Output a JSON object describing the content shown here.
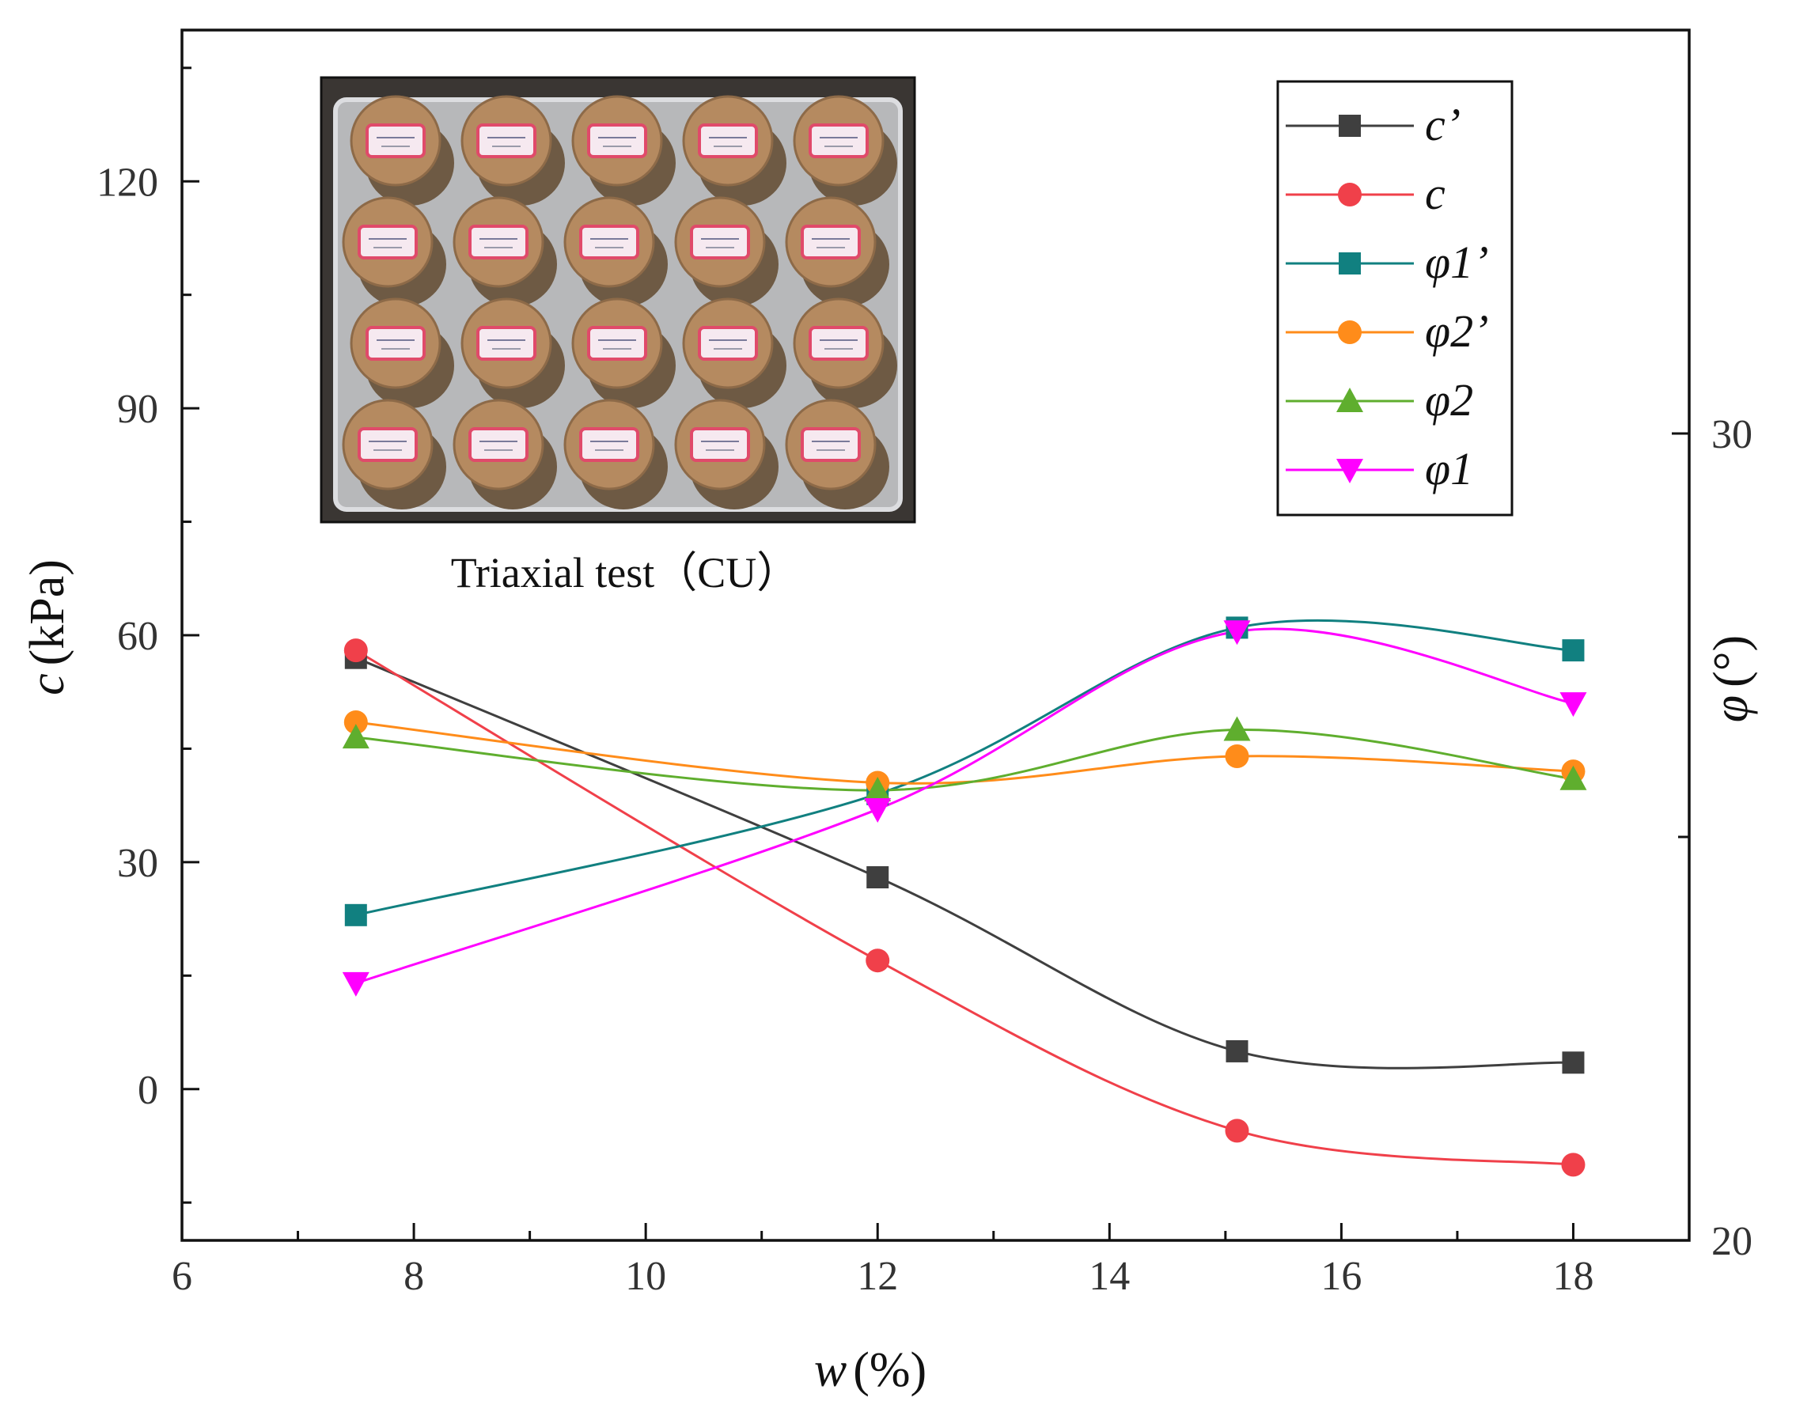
{
  "chart_data": {
    "type": "line",
    "smooth": true,
    "x": [
      7.5,
      12,
      15.1,
      18
    ],
    "xlabel": {
      "var": "w",
      "unit": "(%)"
    },
    "ylabel_left": {
      "var": "c",
      "unit": "(kPa)"
    },
    "ylabel_right": {
      "var": "φ",
      "unit": "(°)"
    },
    "xlim": [
      6,
      19
    ],
    "ylim_left": [
      -20,
      140
    ],
    "ylim_right": [
      20,
      35
    ],
    "xticks": [
      6,
      8,
      10,
      12,
      14,
      16,
      18
    ],
    "yticks_left": [
      0,
      30,
      60,
      90,
      120
    ],
    "yticks_right": [
      20,
      30
    ],
    "series": [
      {
        "name": "c’",
        "axis": "left",
        "marker": "square",
        "color": "#3f3f3f",
        "values": [
          57,
          28,
          5,
          3.5
        ]
      },
      {
        "name": "c",
        "axis": "left",
        "marker": "circle",
        "color": "#f0404a",
        "values": [
          58,
          17,
          -5.5,
          -10
        ]
      },
      {
        "name": "φ1’",
        "axis": "left",
        "marker": "square",
        "color": "#118080",
        "values": [
          23,
          39,
          61,
          58
        ]
      },
      {
        "name": "φ2’",
        "axis": "left",
        "marker": "circle",
        "color": "#ff8c1a",
        "values": [
          48.5,
          40.5,
          44,
          42
        ]
      },
      {
        "name": "φ2",
        "axis": "left",
        "marker": "triangle-up",
        "color": "#5fae2e",
        "values": [
          46.5,
          39.5,
          47.5,
          41
        ]
      },
      {
        "name": "φ1",
        "axis": "left",
        "marker": "triangle-down",
        "color": "#ff00ff",
        "values": [
          14,
          37,
          60.5,
          51
        ]
      }
    ],
    "legend_position": "top-right",
    "inset": {
      "caption": "Triaxial test（CU）",
      "position": "top-left"
    }
  }
}
